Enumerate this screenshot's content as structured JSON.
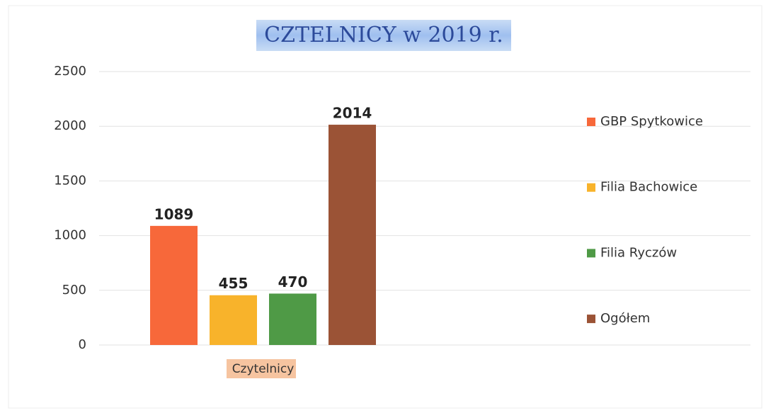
{
  "chart_data": {
    "type": "bar",
    "title": "CZTELNICY w 2019 r.",
    "categories": [
      "Czytelnicy"
    ],
    "series": [
      {
        "name": "GBP Spytkowice",
        "color": "#f7683a",
        "values": [
          1089
        ]
      },
      {
        "name": "Filia Bachowice",
        "color": "#f8b32b",
        "values": [
          455
        ]
      },
      {
        "name": "Filia Ryczów",
        "color": "#4f9a46",
        "values": [
          470
        ]
      },
      {
        "name": "Ogółem",
        "color": "#9b5336",
        "values": [
          2014
        ]
      }
    ],
    "ylim": [
      0,
      2500
    ],
    "yticks": [
      0,
      500,
      1000,
      1500,
      2000,
      2500
    ],
    "grid": true,
    "legend": "right"
  }
}
